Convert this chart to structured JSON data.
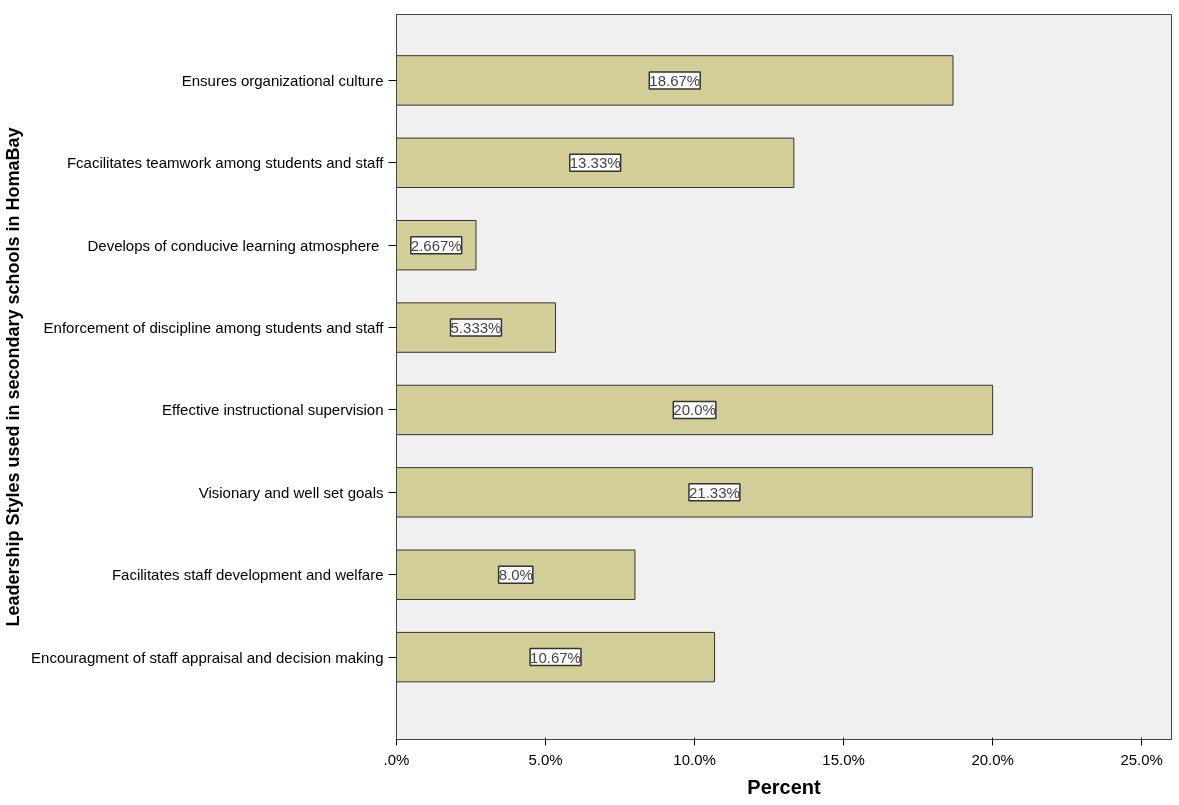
{
  "chart_data": {
    "type": "bar",
    "orientation": "horizontal",
    "xlabel": "Percent",
    "ylabel": "Leadership Styles used in secondary schools in HomaBay",
    "categories": [
      "Ensures organizational culture",
      "Fcacilitates teamwork among students and staff",
      "Develops  of conducive learning atmosphere",
      "Enforcement of discipline among students and staff",
      "Effective instructional supervision",
      "Visionary and well set goals",
      "Facilitates staff development and welfare",
      "Encouragment of staff appraisal and decision making"
    ],
    "values": [
      18.67,
      13.33,
      2.667,
      5.333,
      20.0,
      21.33,
      8.0,
      10.67
    ],
    "value_labels": [
      "18.67%",
      "13.33%",
      "2.667%",
      "5.333%",
      "20.0%",
      "21.33%",
      "8.0%",
      "10.67%"
    ],
    "color": "#d3ce97",
    "xlim": [
      0,
      26
    ],
    "xticks": [
      {
        "value": 0,
        "label": ".0%"
      },
      {
        "value": 5,
        "label": "5.0%"
      },
      {
        "value": 10,
        "label": "10.0%"
      },
      {
        "value": 15,
        "label": "15.0%"
      },
      {
        "value": 20,
        "label": "20.0%"
      },
      {
        "value": 25,
        "label": "25.0%"
      }
    ],
    "grid": false
  }
}
